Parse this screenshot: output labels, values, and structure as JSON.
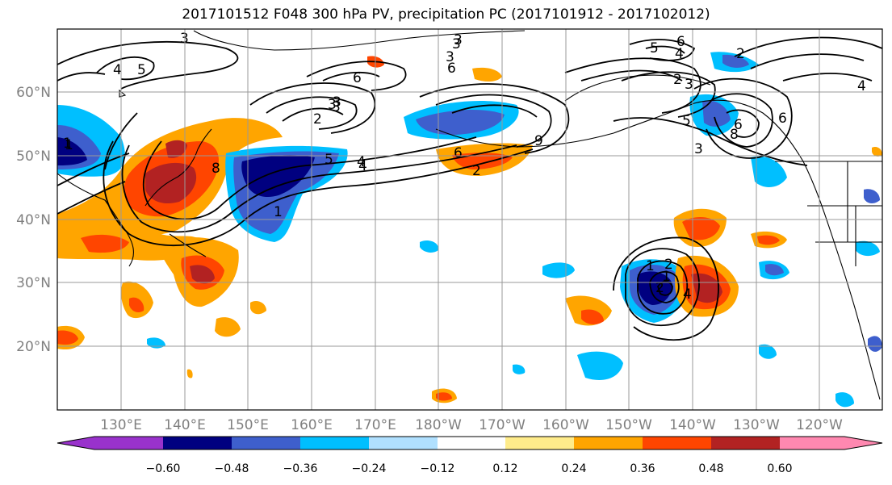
{
  "title": "2017101512 F048 300 hPa PV, precipitation PC (2017101912 - 2017102012)",
  "map": {
    "lat_labels": [
      "60°N",
      "50°N",
      "40°N",
      "30°N",
      "20°N"
    ],
    "lon_labels": [
      "130°E",
      "140°E",
      "150°E",
      "160°E",
      "170°E",
      "180°W",
      "170°W",
      "160°W",
      "150°W",
      "140°W",
      "130°W",
      "120°W"
    ],
    "contour_labels": [
      "3",
      "4",
      "5",
      "3",
      "2",
      "3",
      "6",
      "1",
      "3",
      "2",
      "6",
      "3",
      "3",
      "6",
      "5",
      "4",
      "2",
      "3",
      "5",
      "3",
      "6",
      "4",
      "4",
      "1",
      "1",
      "8",
      "5",
      "4",
      "6",
      "2",
      "9",
      "3",
      "8",
      "6",
      "2",
      "1",
      "2",
      "1",
      "4"
    ]
  },
  "colorbar": {
    "tick_labels": [
      "−0.60",
      "−0.48",
      "−0.36",
      "−0.24",
      "−0.12",
      "0.12",
      "0.24",
      "0.36",
      "0.48",
      "0.60"
    ],
    "colors": [
      "#9932cc",
      "#000080",
      "#3e5fcd",
      "#00bfff",
      "#b0e0ff",
      "#ffffff",
      "#ffec8b",
      "#ffa500",
      "#ff4500",
      "#b22222",
      "#ff88b0"
    ]
  },
  "colors": {
    "gridline": "#999999",
    "axis_label": "#808080",
    "neg_strong": "#000080",
    "neg_med": "#3e5fcd",
    "neg_light": "#00bfff",
    "neg_pale": "#b0e0ff",
    "pos_pale": "#ffec8b",
    "pos_light": "#ffa500",
    "pos_med": "#ff4500",
    "pos_strong": "#b22222"
  }
}
